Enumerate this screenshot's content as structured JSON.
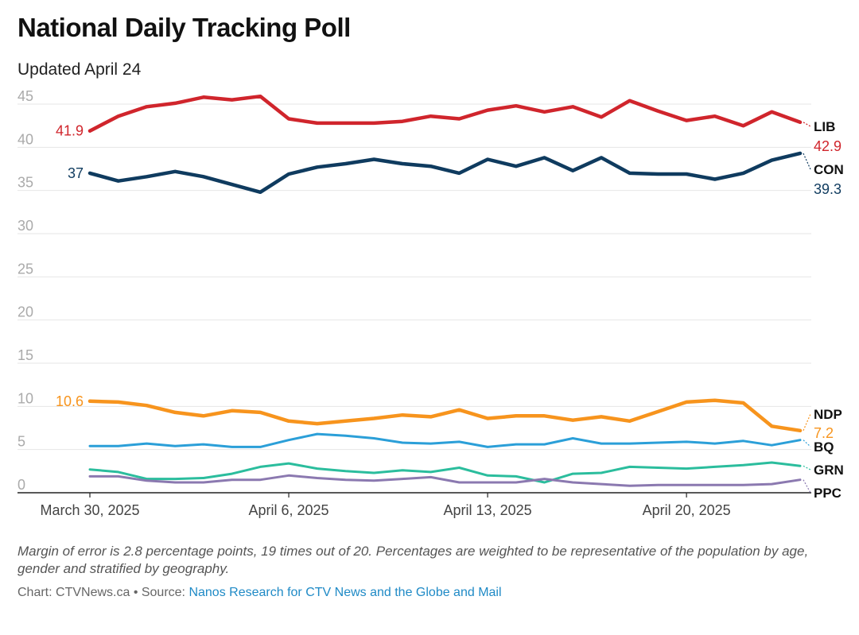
{
  "header": {
    "title": "National Daily Tracking Poll",
    "subtitle": "Updated April 24"
  },
  "footer": {
    "notes": "Margin of error is 2.8 percentage points, 19 times out of 20. Percentages are weighted to be representative of the population by age, gender and stratified by geography.",
    "credit_prefix": "Chart: CTVNews.ca • Source: ",
    "source_link": "Nanos Research for CTV News and the Globe and Mail"
  },
  "chart_data": {
    "type": "line",
    "ylim": [
      0,
      45
    ],
    "yticks": [
      0,
      5,
      10,
      15,
      20,
      25,
      30,
      35,
      40,
      45
    ],
    "grid": true,
    "x": [
      "2025-03-30",
      "2025-03-31",
      "2025-04-01",
      "2025-04-02",
      "2025-04-03",
      "2025-04-04",
      "2025-04-05",
      "2025-04-06",
      "2025-04-07",
      "2025-04-08",
      "2025-04-09",
      "2025-04-10",
      "2025-04-11",
      "2025-04-12",
      "2025-04-13",
      "2025-04-14",
      "2025-04-15",
      "2025-04-16",
      "2025-04-17",
      "2025-04-18",
      "2025-04-19",
      "2025-04-20",
      "2025-04-21",
      "2025-04-22",
      "2025-04-23",
      "2025-04-24"
    ],
    "xticks": [
      {
        "index": 0,
        "label": "March 30, 2025"
      },
      {
        "index": 7,
        "label": "April 6, 2025"
      },
      {
        "index": 14,
        "label": "April 13, 2025"
      },
      {
        "index": 21,
        "label": "April 20, 2025"
      }
    ],
    "series": [
      {
        "name": "LIB",
        "color": "#d0252c",
        "start_label": "41.9",
        "end_label": "42.9",
        "values": [
          41.9,
          43.6,
          44.7,
          45.1,
          45.8,
          45.5,
          45.9,
          43.3,
          42.8,
          42.8,
          42.8,
          43.0,
          43.6,
          43.3,
          44.3,
          44.8,
          44.1,
          44.7,
          43.5,
          45.4,
          44.2,
          43.1,
          43.6,
          42.5,
          44.1,
          42.9
        ]
      },
      {
        "name": "CON",
        "color": "#0f3b5f",
        "start_label": "37",
        "end_label": "39.3",
        "values": [
          37.0,
          36.1,
          36.6,
          37.2,
          36.6,
          35.7,
          34.8,
          36.9,
          37.7,
          38.1,
          38.6,
          38.1,
          37.8,
          37.0,
          38.6,
          37.8,
          38.8,
          37.3,
          38.8,
          37.0,
          36.9,
          36.9,
          36.3,
          37.0,
          38.5,
          39.3
        ]
      },
      {
        "name": "NDP",
        "color": "#f7941d",
        "start_label": "10.6",
        "end_label": "7.2",
        "values": [
          10.6,
          10.5,
          10.1,
          9.3,
          8.9,
          9.5,
          9.3,
          8.3,
          8.0,
          8.3,
          8.6,
          9.0,
          8.8,
          9.6,
          8.6,
          8.9,
          8.9,
          8.4,
          8.8,
          8.3,
          9.4,
          10.5,
          10.7,
          10.4,
          7.7,
          7.2
        ]
      },
      {
        "name": "BQ",
        "color": "#2b9fd8",
        "values": [
          5.4,
          5.4,
          5.7,
          5.4,
          5.6,
          5.3,
          5.3,
          6.1,
          6.8,
          6.6,
          6.3,
          5.8,
          5.7,
          5.9,
          5.3,
          5.6,
          5.6,
          6.3,
          5.7,
          5.7,
          5.8,
          5.9,
          5.7,
          6.0,
          5.5,
          6.1
        ]
      },
      {
        "name": "GRN",
        "color": "#2bbd9d",
        "values": [
          2.7,
          2.4,
          1.6,
          1.6,
          1.7,
          2.2,
          3.0,
          3.4,
          2.8,
          2.5,
          2.3,
          2.6,
          2.4,
          2.9,
          2.0,
          1.9,
          1.2,
          2.2,
          2.3,
          3.0,
          2.9,
          2.8,
          3.0,
          3.2,
          3.5,
          3.1
        ]
      },
      {
        "name": "PPC",
        "color": "#8b79b0",
        "values": [
          1.9,
          1.9,
          1.4,
          1.2,
          1.2,
          1.5,
          1.5,
          2.0,
          1.7,
          1.5,
          1.4,
          1.6,
          1.8,
          1.2,
          1.2,
          1.2,
          1.6,
          1.2,
          1.0,
          0.8,
          0.9,
          0.9,
          0.9,
          0.9,
          1.0,
          1.5
        ]
      }
    ]
  }
}
